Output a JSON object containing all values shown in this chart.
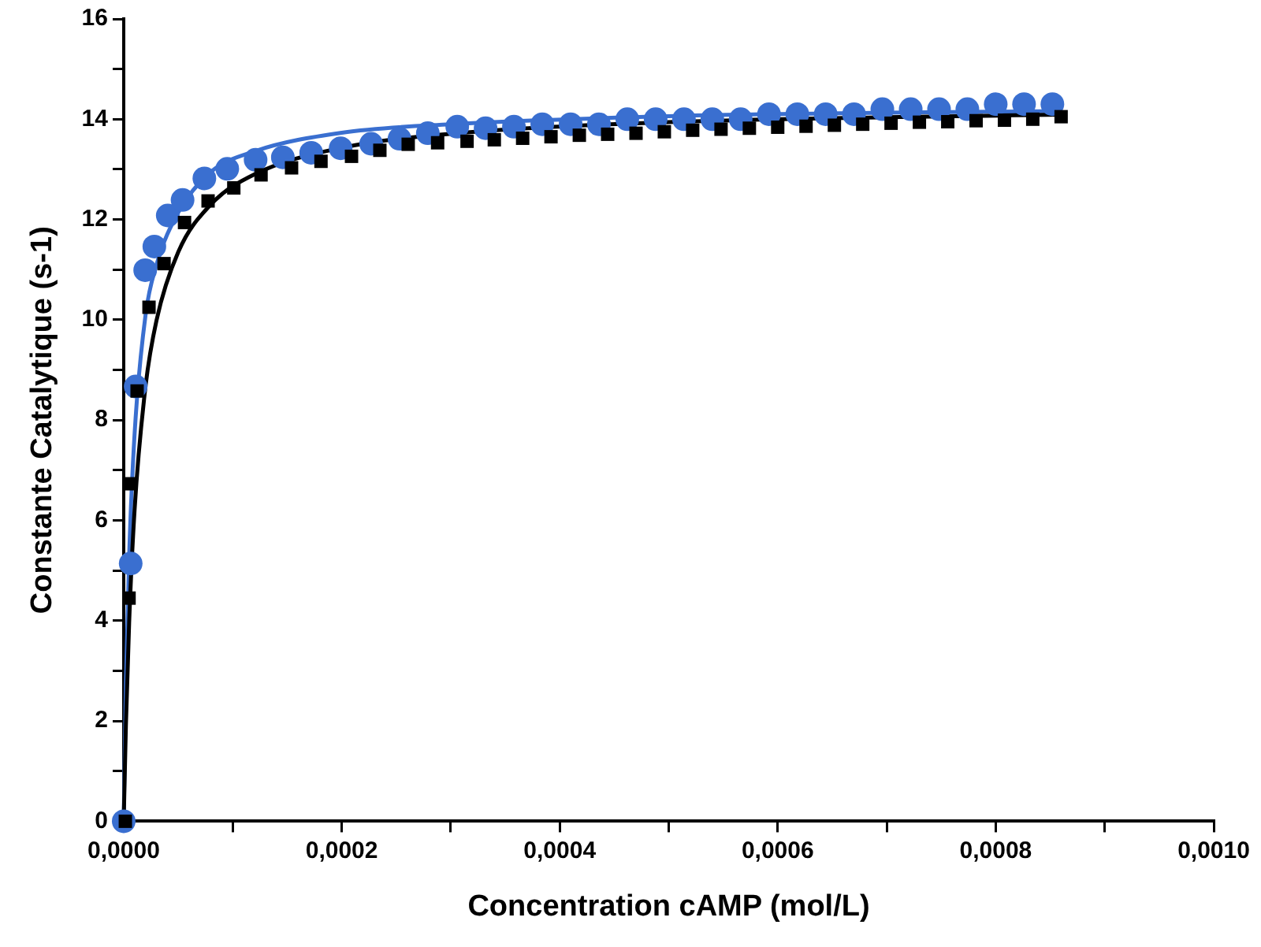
{
  "chart_data": {
    "type": "scatter",
    "xlabel": "Concentration cAMP (mol/L)",
    "ylabel": "Constante Catalytique (s-1)",
    "xlim": [
      0,
      0.001
    ],
    "xticks": [
      {
        "value": 0,
        "label": "0,0000"
      },
      {
        "value": 0.0001,
        "label": null
      },
      {
        "value": 0.0002,
        "label": "0,0002"
      },
      {
        "value": 0.0003,
        "label": null
      },
      {
        "value": 0.0004,
        "label": "0,0004"
      },
      {
        "value": 0.0005,
        "label": null
      },
      {
        "value": 0.0006,
        "label": "0,0006"
      },
      {
        "value": 0.0007,
        "label": null
      },
      {
        "value": 0.0008,
        "label": "0,0008"
      },
      {
        "value": 0.0009,
        "label": null
      },
      {
        "value": 0.001,
        "label": "0,0010"
      }
    ],
    "ylim": [
      0,
      16
    ],
    "yticks": [
      0,
      {
        "value": 1,
        "label": null
      },
      2,
      {
        "value": 3,
        "label": null
      },
      4,
      {
        "value": 5,
        "label": null
      },
      6,
      {
        "value": 7,
        "label": null
      },
      8,
      {
        "value": 9,
        "label": null
      },
      10,
      {
        "value": 11,
        "label": null
      },
      12,
      {
        "value": 13,
        "label": null
      },
      14,
      {
        "value": 15,
        "label": null
      },
      16
    ],
    "grid": false,
    "legend": false,
    "series": [
      {
        "marker": "circle",
        "color": "#3a6fd0",
        "x": [
          0,
          6.4e-06,
          1.1e-05,
          1.97e-05,
          2.81e-05,
          4.04e-05,
          5.4e-05,
          7.4e-05,
          9.5e-05,
          0.000121,
          0.000146,
          0.000172,
          0.000199,
          0.000227,
          0.000253,
          0.000279,
          0.000306,
          0.000332,
          0.000358,
          0.000384,
          0.00041,
          0.000436,
          0.000462,
          0.000488,
          0.000514,
          0.00054,
          0.000566,
          0.000592,
          0.000618,
          0.000644,
          0.00067,
          0.000696,
          0.000722,
          0.000748,
          0.000774,
          0.0008,
          0.000826,
          0.000852
        ],
        "values": [
          0,
          5.14,
          8.67,
          10.99,
          11.46,
          12.08,
          12.39,
          12.82,
          13.01,
          13.19,
          13.24,
          13.33,
          13.42,
          13.51,
          13.61,
          13.72,
          13.85,
          13.82,
          13.85,
          13.9,
          13.9,
          13.9,
          14.0,
          14.0,
          14.0,
          14.0,
          14.0,
          14.1,
          14.1,
          14.1,
          14.1,
          14.2,
          14.2,
          14.2,
          14.2,
          14.3,
          14.3,
          14.3
        ]
      },
      {
        "marker": "square",
        "color": "#000000",
        "x": [
          1.5e-06,
          4.9e-06,
          6.4e-06,
          1.23e-05,
          2.32e-05,
          3.7e-05,
          5.58e-05,
          7.74e-05,
          0.000101,
          0.000126,
          0.000154,
          0.000181,
          0.000209,
          0.000235,
          0.000261,
          0.000288,
          0.000315,
          0.00034,
          0.000366,
          0.000392,
          0.000418,
          0.000444,
          0.00047,
          0.000496,
          0.000522,
          0.000548,
          0.000574,
          0.0006,
          0.000626,
          0.000652,
          0.000678,
          0.000704,
          0.00073,
          0.000756,
          0.000782,
          0.000808,
          0.000834,
          0.00086
        ],
        "values": [
          0,
          4.45,
          6.73,
          8.58,
          10.25,
          11.12,
          11.94,
          12.37,
          12.63,
          12.89,
          13.03,
          13.16,
          13.26,
          13.38,
          13.5,
          13.53,
          13.56,
          13.59,
          13.62,
          13.65,
          13.68,
          13.7,
          13.72,
          13.75,
          13.78,
          13.8,
          13.82,
          13.84,
          13.86,
          13.88,
          13.9,
          13.92,
          13.94,
          13.95,
          13.97,
          13.98,
          14.0,
          14.05
        ]
      },
      {
        "type": "line",
        "marker": "none",
        "line_style": "solid",
        "color": "#3a6fd0",
        "x": [
          0,
          2e-06,
          5e-06,
          1e-05,
          2e-05,
          3e-05,
          5e-05,
          8e-05,
          0.00012,
          0.0002,
          0.0003,
          0.0005,
          0.0007,
          0.00086
        ],
        "values": [
          0,
          2.72,
          5.29,
          7.73,
          10.09,
          11.09,
          12.14,
          12.95,
          13.36,
          13.73,
          13.9,
          14.06,
          14.13,
          14.16
        ]
      },
      {
        "type": "line",
        "marker": "none",
        "line_style": "solid",
        "color": "#000000",
        "x": [
          0,
          2e-06,
          5e-06,
          1e-05,
          2e-05,
          3e-05,
          5e-05,
          8e-05,
          0.00012,
          0.0002,
          0.0003,
          0.0005,
          0.0007,
          0.00086
        ],
        "values": [
          0,
          1.91,
          3.97,
          6.22,
          8.67,
          9.98,
          11.35,
          12.3,
          12.9,
          13.43,
          13.71,
          13.94,
          14.04,
          14.09
        ]
      }
    ]
  }
}
